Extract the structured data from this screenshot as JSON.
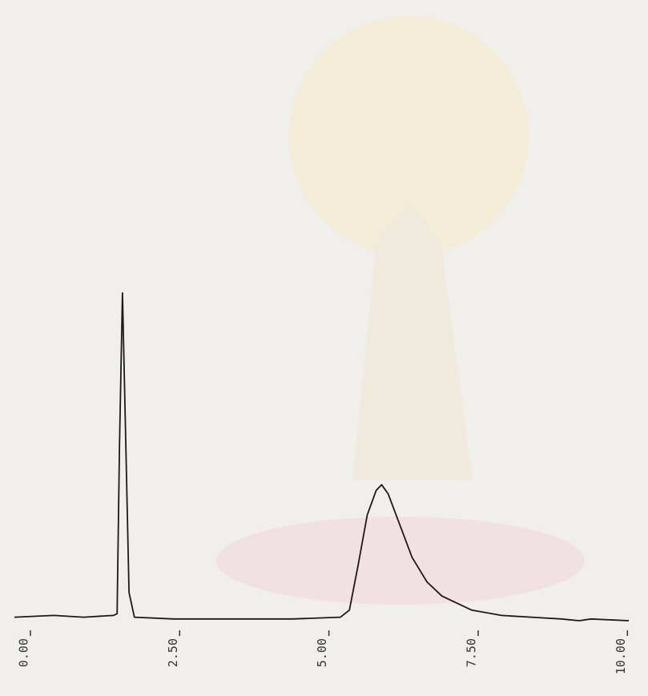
{
  "chart_data": {
    "type": "line",
    "x": [
      -0.16,
      0.5,
      1.0,
      1.5,
      1.56,
      1.6,
      1.65,
      1.7,
      1.76,
      1.85,
      2.5,
      3.5,
      4.5,
      5.3,
      5.45,
      5.6,
      5.75,
      5.9,
      5.99,
      6.1,
      6.3,
      6.5,
      6.75,
      7.0,
      7.5,
      8.0,
      8.5,
      9.0,
      9.3,
      9.5,
      10.13
    ],
    "series": [
      {
        "color": "#1a1a1a",
        "values": [
          1,
          1.5,
          1,
          1.5,
          2,
          50,
          93,
          55,
          8,
          1,
          0.5,
          0.5,
          0.5,
          1,
          3,
          16,
          30,
          37,
          38.6,
          36,
          27,
          18,
          11,
          7,
          3,
          1.5,
          1,
          0.5,
          0,
          0.5,
          0
        ]
      }
    ],
    "xlim": [
      -0.16,
      10.13
    ],
    "ylim": [
      0,
      100
    ],
    "xticks": [
      {
        "value": 0,
        "label": "0.00"
      },
      {
        "value": 2.5,
        "label": "2.50"
      },
      {
        "value": 5,
        "label": "5.00"
      },
      {
        "value": 7.5,
        "label": "7.50"
      },
      {
        "value": 10,
        "label": "10.00"
      }
    ]
  }
}
